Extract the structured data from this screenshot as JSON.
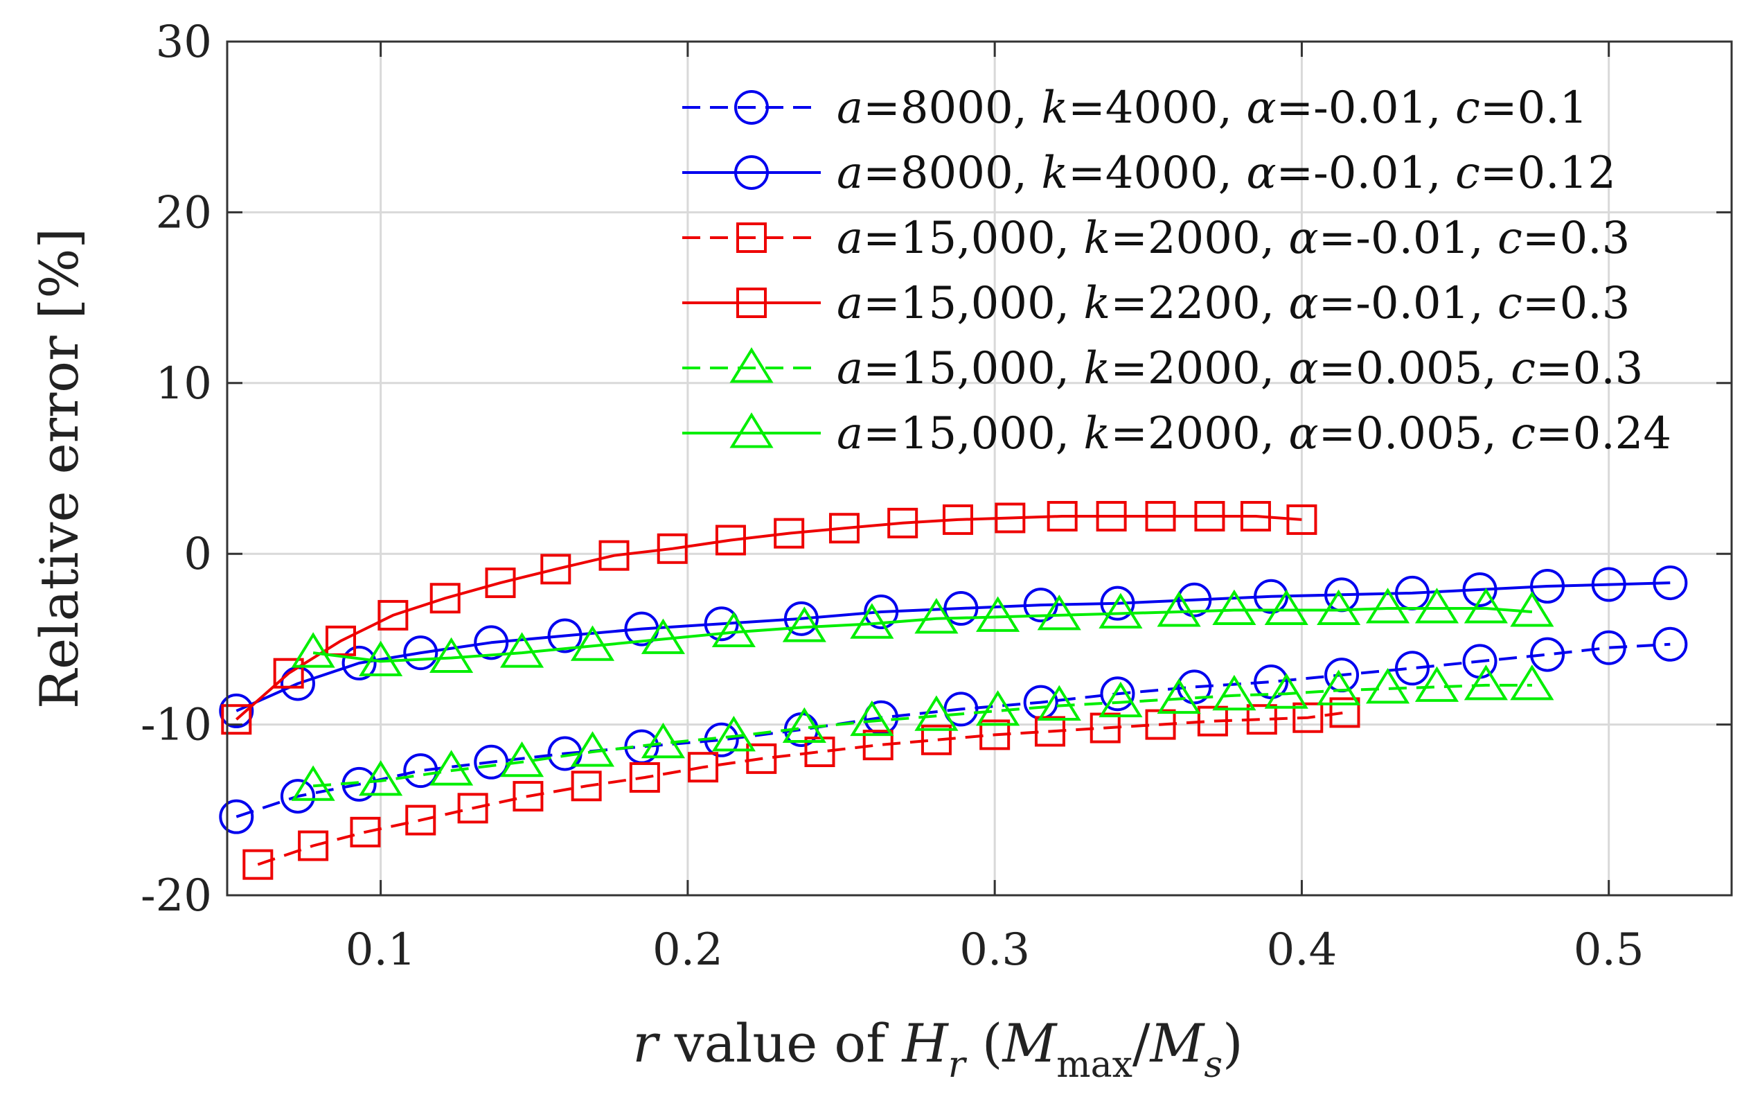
{
  "chart_data": {
    "type": "line",
    "title": "",
    "xlabel": {
      "var": "r",
      "rest": " value of ",
      "H": "H",
      "Hsub": "r",
      "open": " (",
      "M1": "M",
      "M1sub": "max",
      "slash": "/",
      "M2": "M",
      "M2sub": "s",
      "close": ")"
    },
    "ylabel": "Relative error [%]",
    "xlim": [
      0.05,
      0.54
    ],
    "ylim": [
      -20,
      30
    ],
    "xticks": [
      0.1,
      0.2,
      0.3,
      0.4,
      0.5
    ],
    "xtick_labels": [
      "0.1",
      "0.2",
      "0.3",
      "0.4",
      "0.5"
    ],
    "yticks": [
      -20,
      -10,
      0,
      10,
      20,
      30
    ],
    "ytick_labels": [
      "-20",
      "-10",
      "0",
      "10",
      "20",
      "30"
    ],
    "grid": true,
    "legend_position": "top-right",
    "series": [
      {
        "name": "a=8000, k=4000, α=-0.01, c=0.1",
        "label": {
          "a": "8000",
          "k": "4000",
          "alpha": "-0.01",
          "c": "0.1"
        },
        "color": "#0000ee",
        "dash": true,
        "marker": "circle",
        "x": [
          0.053,
          0.073,
          0.093,
          0.113,
          0.136,
          0.16,
          0.185,
          0.211,
          0.237,
          0.263,
          0.289,
          0.315,
          0.34,
          0.365,
          0.39,
          0.413,
          0.436,
          0.458,
          0.48,
          0.5,
          0.52
        ],
        "y": [
          -15.4,
          -14.2,
          -13.5,
          -12.7,
          -12.2,
          -11.7,
          -11.3,
          -10.9,
          -10.3,
          -9.6,
          -9.1,
          -8.7,
          -8.2,
          -7.8,
          -7.5,
          -7.1,
          -6.7,
          -6.3,
          -5.9,
          -5.5,
          -5.3
        ]
      },
      {
        "name": "a=8000, k=4000, α=-0.01, c=0.12",
        "label": {
          "a": "8000",
          "k": "4000",
          "alpha": "-0.01",
          "c": "0.12"
        },
        "color": "#0000ee",
        "dash": false,
        "marker": "circle",
        "x": [
          0.053,
          0.073,
          0.093,
          0.113,
          0.136,
          0.16,
          0.185,
          0.211,
          0.237,
          0.263,
          0.289,
          0.315,
          0.34,
          0.365,
          0.39,
          0.413,
          0.436,
          0.458,
          0.48,
          0.5,
          0.52
        ],
        "y": [
          -9.2,
          -7.6,
          -6.4,
          -5.8,
          -5.2,
          -4.8,
          -4.4,
          -4.1,
          -3.8,
          -3.4,
          -3.2,
          -3.0,
          -2.9,
          -2.7,
          -2.5,
          -2.4,
          -2.3,
          -2.1,
          -1.9,
          -1.8,
          -1.7
        ]
      },
      {
        "name": "a=15,000, k=2000, α=-0.01, c=0.3",
        "label": {
          "a": "15,000",
          "k": "2000",
          "alpha": "-0.01",
          "c": "0.3"
        },
        "color": "#ee0000",
        "dash": true,
        "marker": "square",
        "x": [
          0.06,
          0.078,
          0.095,
          0.113,
          0.13,
          0.148,
          0.167,
          0.186,
          0.205,
          0.224,
          0.243,
          0.262,
          0.281,
          0.3,
          0.318,
          0.336,
          0.354,
          0.371,
          0.387,
          0.402,
          0.414
        ],
        "y": [
          -18.2,
          -17.1,
          -16.3,
          -15.6,
          -14.9,
          -14.2,
          -13.6,
          -13.1,
          -12.5,
          -12.0,
          -11.6,
          -11.2,
          -10.9,
          -10.6,
          -10.4,
          -10.2,
          -10.0,
          -9.8,
          -9.7,
          -9.6,
          -9.3
        ]
      },
      {
        "name": "a=15,000, k=2200, α=-0.01, c=0.3",
        "label": {
          "a": "15,000",
          "k": "2200",
          "alpha": "-0.01",
          "c": "0.3"
        },
        "color": "#ee0000",
        "dash": false,
        "marker": "square",
        "x": [
          0.053,
          0.07,
          0.087,
          0.104,
          0.121,
          0.139,
          0.157,
          0.176,
          0.195,
          0.214,
          0.233,
          0.251,
          0.27,
          0.288,
          0.305,
          0.322,
          0.338,
          0.354,
          0.37,
          0.385,
          0.4
        ],
        "y": [
          -9.7,
          -7.0,
          -5.1,
          -3.6,
          -2.6,
          -1.7,
          -0.9,
          -0.1,
          0.3,
          0.8,
          1.2,
          1.5,
          1.8,
          2.0,
          2.1,
          2.2,
          2.2,
          2.2,
          2.2,
          2.2,
          2.0
        ]
      },
      {
        "name": "a=15,000, k=2000, α=0.005, c=0.3",
        "label": {
          "a": "15,000",
          "k": "2000",
          "alpha": "0.005",
          "c": "0.3"
        },
        "color": "#00ee00",
        "dash": true,
        "marker": "triangle",
        "x": [
          0.078,
          0.1,
          0.123,
          0.146,
          0.169,
          0.192,
          0.215,
          0.238,
          0.26,
          0.281,
          0.301,
          0.321,
          0.341,
          0.36,
          0.378,
          0.395,
          0.412,
          0.428,
          0.444,
          0.46,
          0.475
        ],
        "y": [
          -13.6,
          -13.3,
          -12.7,
          -12.2,
          -11.6,
          -11.1,
          -10.7,
          -10.2,
          -9.8,
          -9.5,
          -9.2,
          -8.9,
          -8.7,
          -8.5,
          -8.3,
          -8.2,
          -8.0,
          -7.9,
          -7.8,
          -7.7,
          -7.7
        ]
      },
      {
        "name": "a=15,000, k=2000, α=0.005, c=0.24",
        "label": {
          "a": "15,000",
          "k": "2000",
          "alpha": "0.005",
          "c": "0.24"
        },
        "color": "#00ee00",
        "dash": false,
        "marker": "triangle",
        "x": [
          0.078,
          0.1,
          0.123,
          0.146,
          0.169,
          0.192,
          0.215,
          0.238,
          0.26,
          0.281,
          0.301,
          0.321,
          0.341,
          0.36,
          0.378,
          0.395,
          0.412,
          0.428,
          0.444,
          0.46,
          0.475
        ],
        "y": [
          -5.8,
          -6.3,
          -6.1,
          -5.8,
          -5.4,
          -5.0,
          -4.6,
          -4.3,
          -4.1,
          -3.8,
          -3.7,
          -3.6,
          -3.5,
          -3.4,
          -3.3,
          -3.3,
          -3.3,
          -3.2,
          -3.2,
          -3.2,
          -3.4
        ]
      }
    ]
  }
}
